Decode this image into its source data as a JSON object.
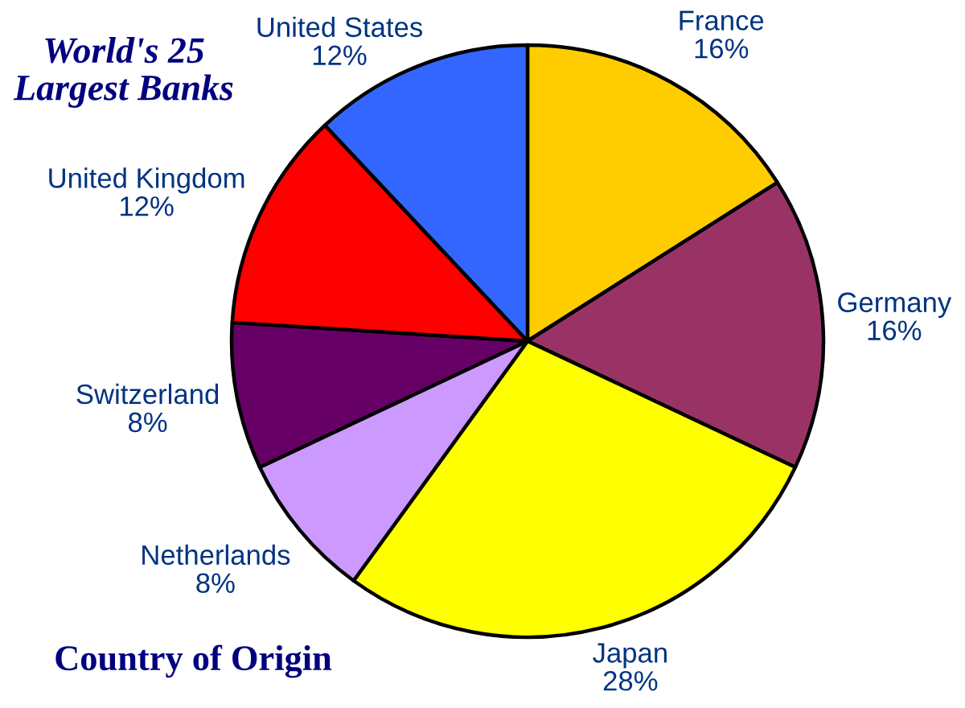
{
  "chart_data": {
    "type": "pie",
    "title": "World's 25\nLargest Banks",
    "subtitle": "Country of Origin",
    "categories": [
      "France",
      "Germany",
      "Japan",
      "Netherlands",
      "Switzerland",
      "United Kingdom",
      "United States"
    ],
    "values": [
      16,
      16,
      28,
      8,
      8,
      12,
      12
    ],
    "value_labels": [
      "16%",
      "16%",
      "28%",
      "8%",
      "8%",
      "12%",
      "12%"
    ],
    "colors": [
      "#ffcc00",
      "#993366",
      "#ffff00",
      "#cc99ff",
      "#660066",
      "#ff0000",
      "#3366ff"
    ]
  }
}
